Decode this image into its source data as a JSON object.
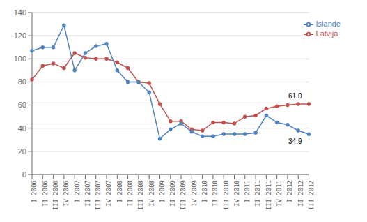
{
  "chart_data": {
    "type": "line",
    "categories": [
      "I 2006",
      "II 2006",
      "III 2006",
      "IV 2006",
      "I 2007",
      "II 2007",
      "III 2007",
      "IV 2007",
      "I 2008",
      "II 2008",
      "III 2008",
      "IV 2008",
      "I 2009",
      "II 2009",
      "III 2009",
      "IV 2009",
      "I 2010",
      "II 2010",
      "III 2010",
      "IV 2010",
      "I 2011",
      "II 2011",
      "III 2011",
      "IV 2011",
      "I 2012",
      "II 2012",
      "III 2012"
    ],
    "series": [
      {
        "name": "Latvija",
        "color": "#c0504d",
        "marker": "circle",
        "annotation": "61.0",
        "values": [
          82,
          94,
          96,
          92,
          105,
          101,
          100,
          100,
          97,
          92,
          80,
          79,
          61,
          46,
          46,
          39,
          38,
          45,
          45,
          44,
          50,
          51,
          57,
          59,
          60,
          61,
          61
        ]
      },
      {
        "name": "Islande",
        "color": "#4f81bd",
        "marker": "circle",
        "annotation": "34.9",
        "values": [
          107,
          110,
          110,
          129,
          90,
          105,
          111,
          113,
          90,
          80,
          80,
          71,
          31,
          39,
          44,
          37,
          33,
          33,
          35,
          35,
          35,
          36,
          51,
          45,
          43,
          38,
          34.9
        ]
      }
    ],
    "ylim": [
      0,
      140
    ],
    "yticks": [
      0,
      20,
      40,
      60,
      80,
      100,
      120,
      140
    ],
    "grid": true,
    "legend": "upper right"
  }
}
